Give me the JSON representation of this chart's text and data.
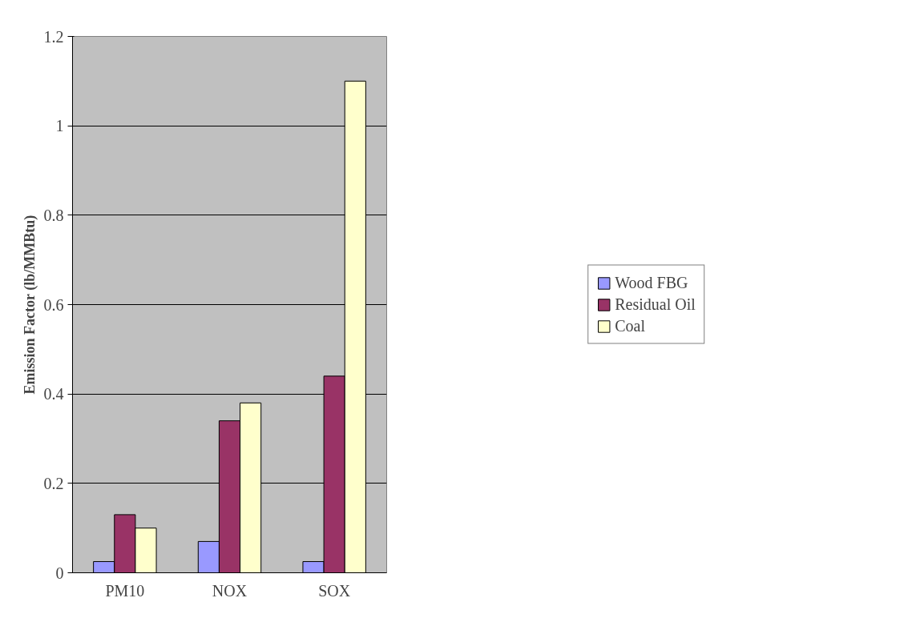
{
  "chart_data": {
    "type": "bar",
    "ylabel": "Emission Factor (lb/MMBtu)",
    "categories": [
      "PM10",
      "NOX",
      "SOX"
    ],
    "series": [
      {
        "name": "Wood FBG",
        "color": "#9999ff",
        "values": [
          0.025,
          0.07,
          0.025
        ]
      },
      {
        "name": "Residual Oil",
        "color": "#993366",
        "values": [
          0.13,
          0.34,
          0.44
        ]
      },
      {
        "name": "Coal",
        "color": "#ffffcc",
        "values": [
          0.1,
          0.38,
          1.1
        ]
      }
    ],
    "ylim": [
      0,
      1.2
    ],
    "yticks": [
      0,
      0.2,
      0.4,
      0.6,
      0.8,
      1,
      1.2
    ],
    "grid": "y",
    "legend": "right"
  }
}
